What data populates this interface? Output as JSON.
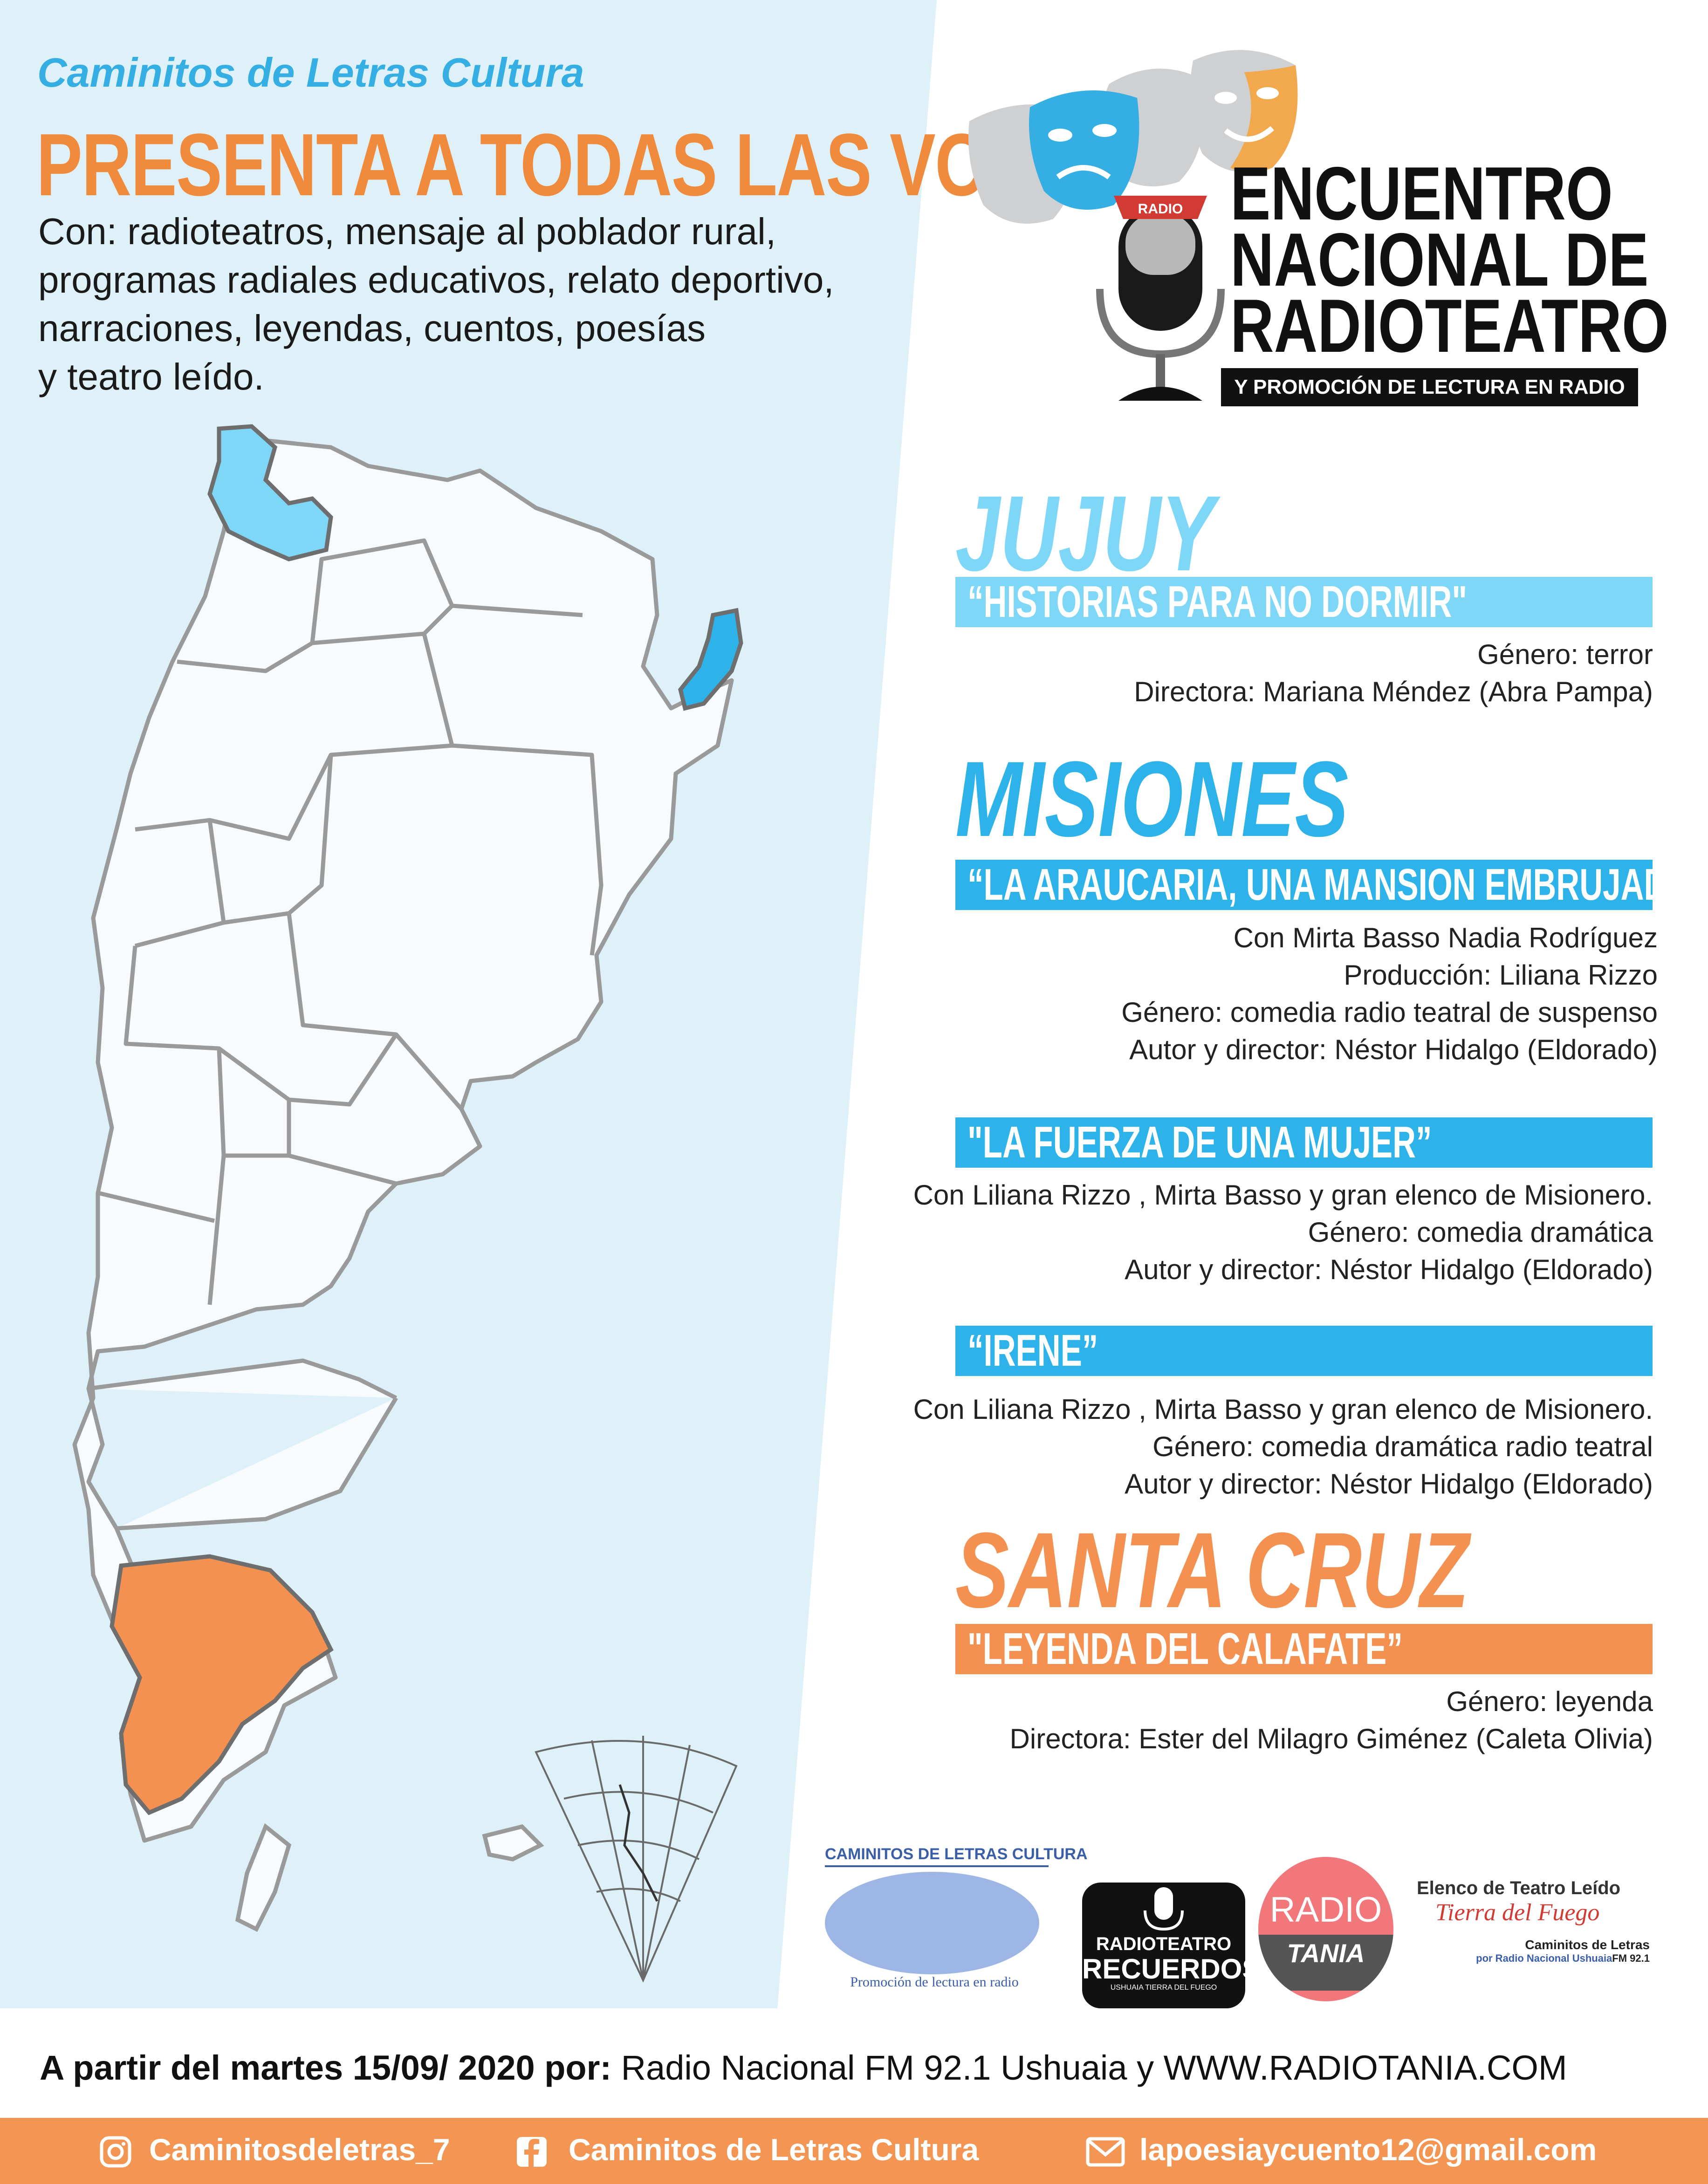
{
  "header": {
    "org_line": "Caminitos de Letras Cultura",
    "headline": "PRESENTA A TODAS LAS VOCES",
    "intro_lines": [
      "Con: radioteatros, mensaje al poblador rural,",
      "programas radiales educativos, relato deportivo,",
      "narraciones, leyendas, cuentos, poesías",
      "y teatro leído."
    ]
  },
  "event_logo": {
    "radio_badge": "RADIO",
    "title_lines": [
      "ENCUENTRO",
      "NACIONAL DE",
      "RADIOTEATRO"
    ],
    "subtitle": "Y PROMOCIÓN DE LECTURA EN RADIO"
  },
  "colors": {
    "jujuy": "#7fd7f8",
    "misiones": "#2db3ea",
    "santa_cruz": "#f49050",
    "panel": "#dff1f8",
    "footer": "#f39553"
  },
  "sections": [
    {
      "province": "JUJUY",
      "works": [
        {
          "title": "“HISTORIAS PARA NO DORMIR\"",
          "details": [
            "Género: terror",
            "Directora: Mariana Méndez (Abra Pampa)"
          ]
        }
      ]
    },
    {
      "province": "MISIONES",
      "works": [
        {
          "title": "“LA ARAUCARIA, UNA MANSION EMBRUJADA”",
          "details": [
            "Con Mirta Basso Nadia Rodríguez",
            "Producción: Liliana Rizzo",
            "Género: comedia radio teatral  de suspenso",
            "Autor y director: Néstor Hidalgo (Eldorado)"
          ]
        },
        {
          "title": "\"LA FUERZA DE UNA MUJER”",
          "details": [
            "Con Liliana Rizzo , Mirta Basso y gran elenco de Misionero.",
            "Género: comedia dramática",
            "Autor y director: Néstor Hidalgo (Eldorado)"
          ]
        },
        {
          "title": "“IRENE”",
          "details": [
            "Con Liliana Rizzo , Mirta Basso y gran elenco de Misionero.",
            "Género: comedia dramática radio teatral",
            "Autor y director: Néstor Hidalgo (Eldorado)"
          ]
        }
      ]
    },
    {
      "province": "SANTA CRUZ",
      "works": [
        {
          "title": "\"LEYENDA DEL CALAFATE”",
          "details": [
            "Género: leyenda",
            "Directora: Ester del Milagro Giménez (Caleta Olivia)"
          ]
        }
      ]
    }
  ],
  "sponsors": {
    "caminitos": {
      "name": "CAMINITOS DE LETRAS CULTURA",
      "tagline": "Promoción de lectura en radio"
    },
    "radioteatro": {
      "line1": "RADIOTEATRO",
      "line2": "RECUERDOS",
      "line3": "USHUAIA TIERRA DEL FUEGO"
    },
    "radiotania": {
      "line1": "RADIO",
      "line2": "TANIA"
    },
    "elenco": {
      "line1": "Elenco de Teatro Leído",
      "line2": "Tierra del Fuego",
      "line3": "Caminitos de Letras",
      "line4": "por Radio Nacional Ushuaia",
      "freq": "FM 92.1"
    }
  },
  "broadcast": {
    "lead": "A partir del martes 15/09/ 2020 por:",
    "rest": "Radio Nacional FM 92.1 Ushuaia y WWW.RADIOTANIA.COM"
  },
  "footer": {
    "instagram": "Caminitosdeletras_7",
    "facebook": "Caminitos de Letras Cultura",
    "email": "lapoesiaycuento12@gmail.com",
    "icons": [
      "instagram-icon",
      "facebook-icon",
      "mail-icon"
    ]
  }
}
